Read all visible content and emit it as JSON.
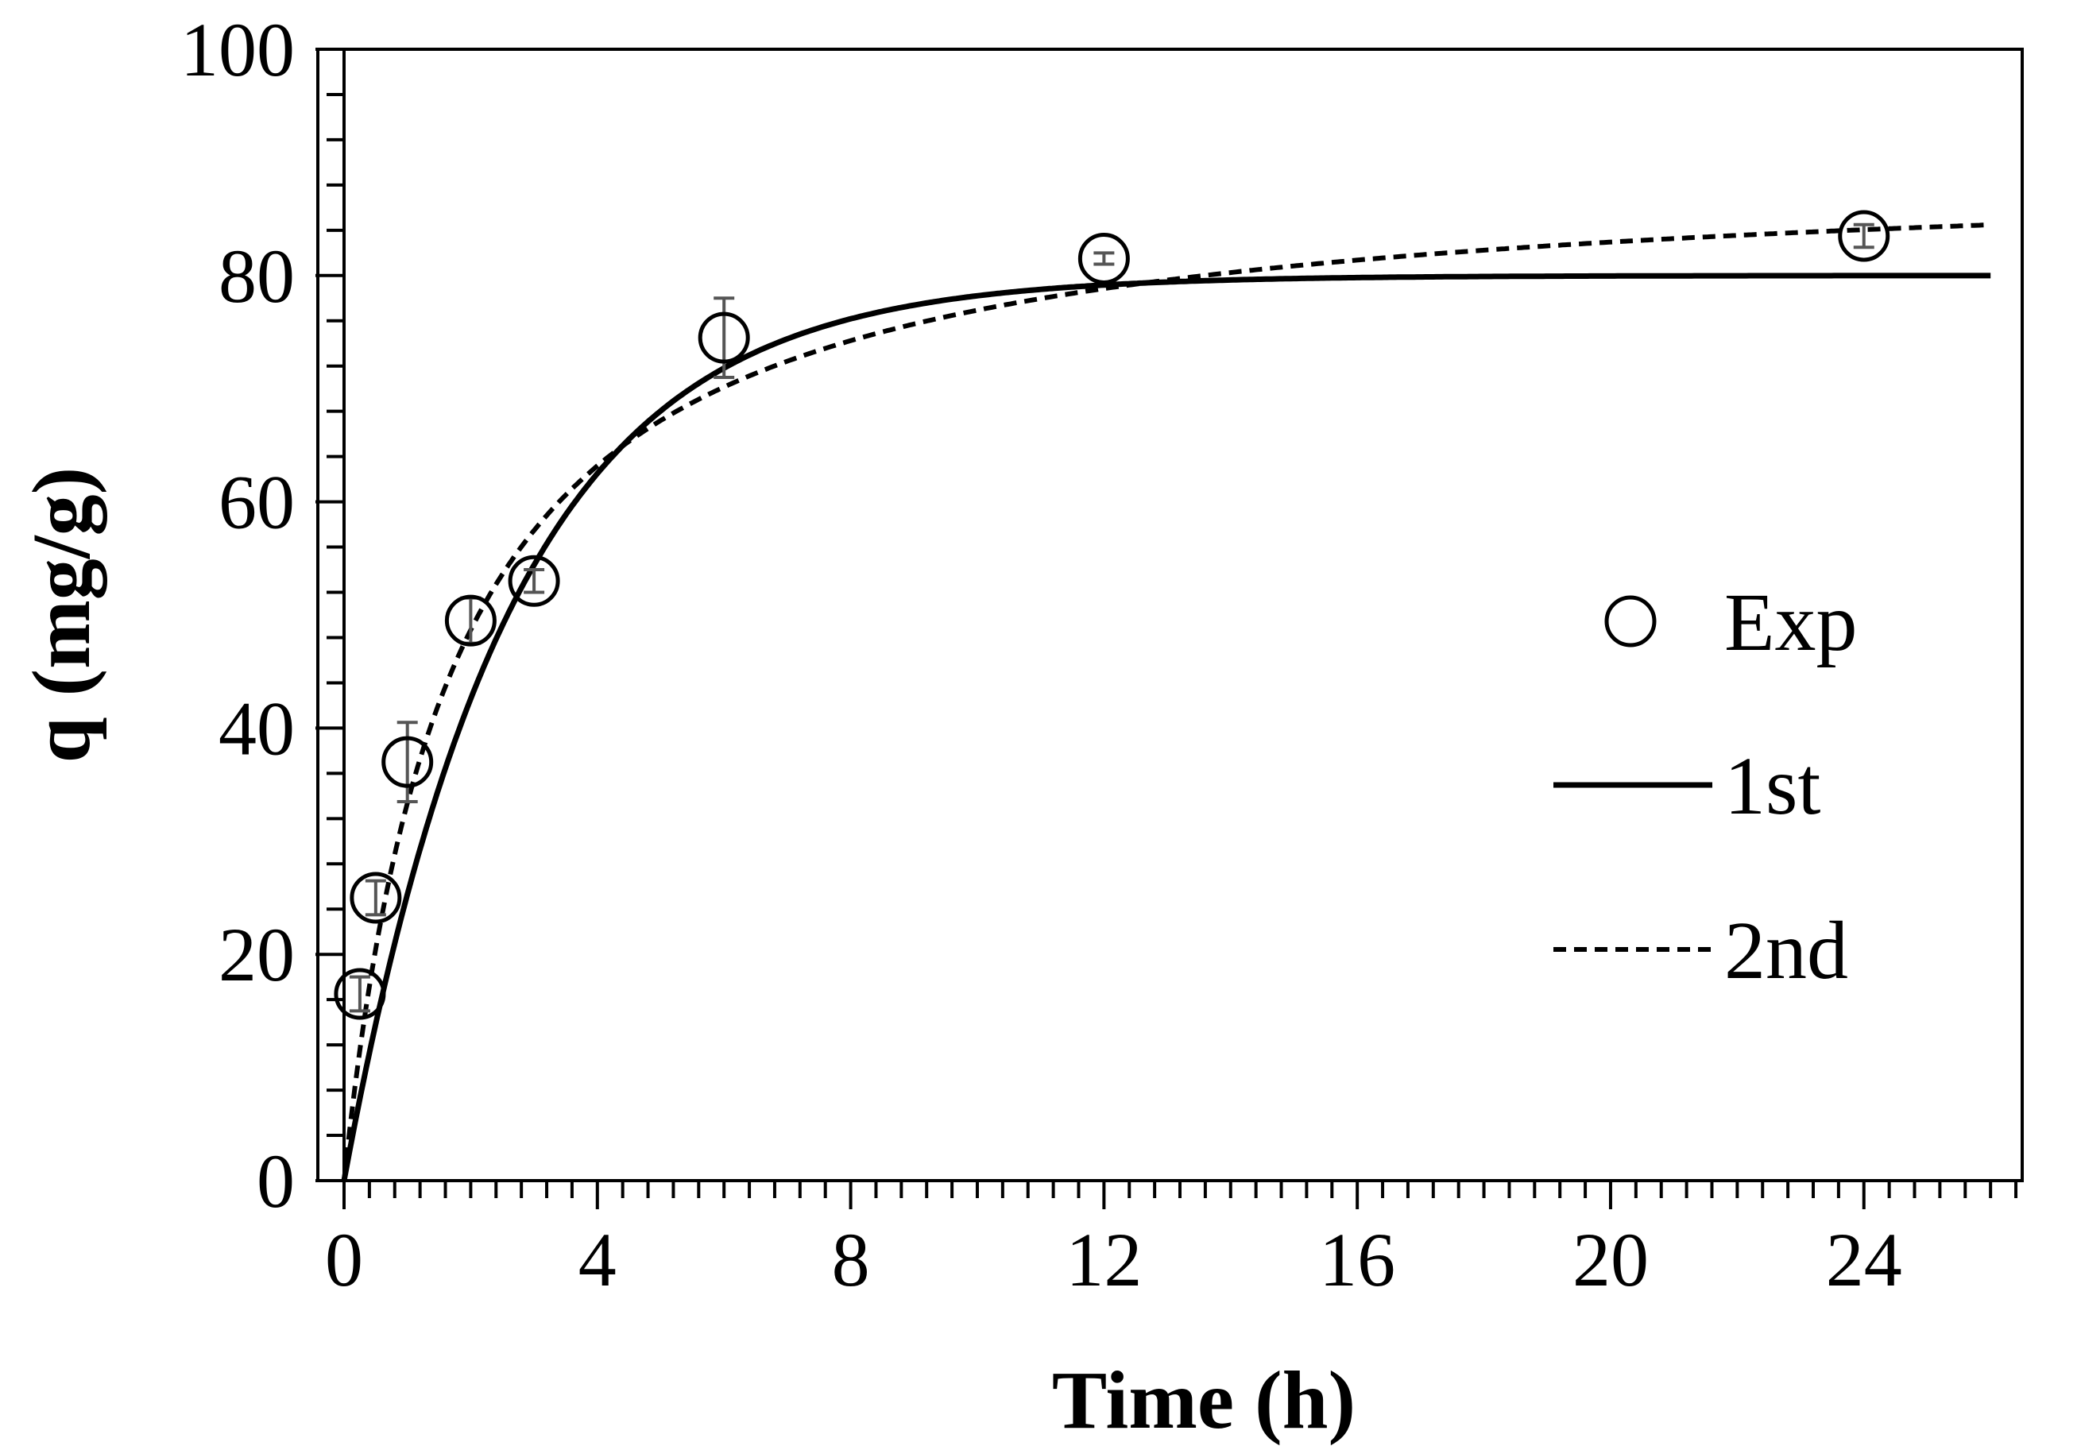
{
  "chart_data": {
    "type": "scatter",
    "xlabel": "Time (h)",
    "ylabel": "q (mg/g)",
    "xlim": [
      0,
      26.5
    ],
    "ylim": [
      0,
      100
    ],
    "x_ticks": [
      0,
      4,
      8,
      12,
      16,
      20,
      24
    ],
    "y_ticks": [
      0,
      20,
      40,
      60,
      80,
      100
    ],
    "x_tick_labels": [
      "0",
      "4",
      "8",
      "12",
      "16",
      "20",
      "24"
    ],
    "y_tick_labels": [
      "0",
      "20",
      "40",
      "60",
      "80",
      "100"
    ],
    "x_minor_step": 0.4,
    "y_minor_step": 4,
    "legend_position": "center-right",
    "series": [
      {
        "name": "Exp",
        "style": "open-circle-markers",
        "x": [
          0.25,
          0.5,
          1,
          2,
          3,
          6,
          12,
          24
        ],
        "y": [
          16.5,
          25,
          37,
          49.5,
          53,
          74.5,
          81.5,
          83.5
        ],
        "error": [
          1.5,
          1.5,
          3.5,
          2,
          1,
          3.5,
          0.5,
          1
        ]
      },
      {
        "name": "1st",
        "style": "solid-line",
        "model": "pseudo-first-order",
        "qe": 80,
        "k": 0.38
      },
      {
        "name": "2nd",
        "style": "dashed-line",
        "model": "pseudo-second-order",
        "qe": 90,
        "h": 53
      }
    ],
    "colors": {
      "line": "#000000",
      "error_bar": "#555555",
      "background": "#ffffff"
    }
  }
}
